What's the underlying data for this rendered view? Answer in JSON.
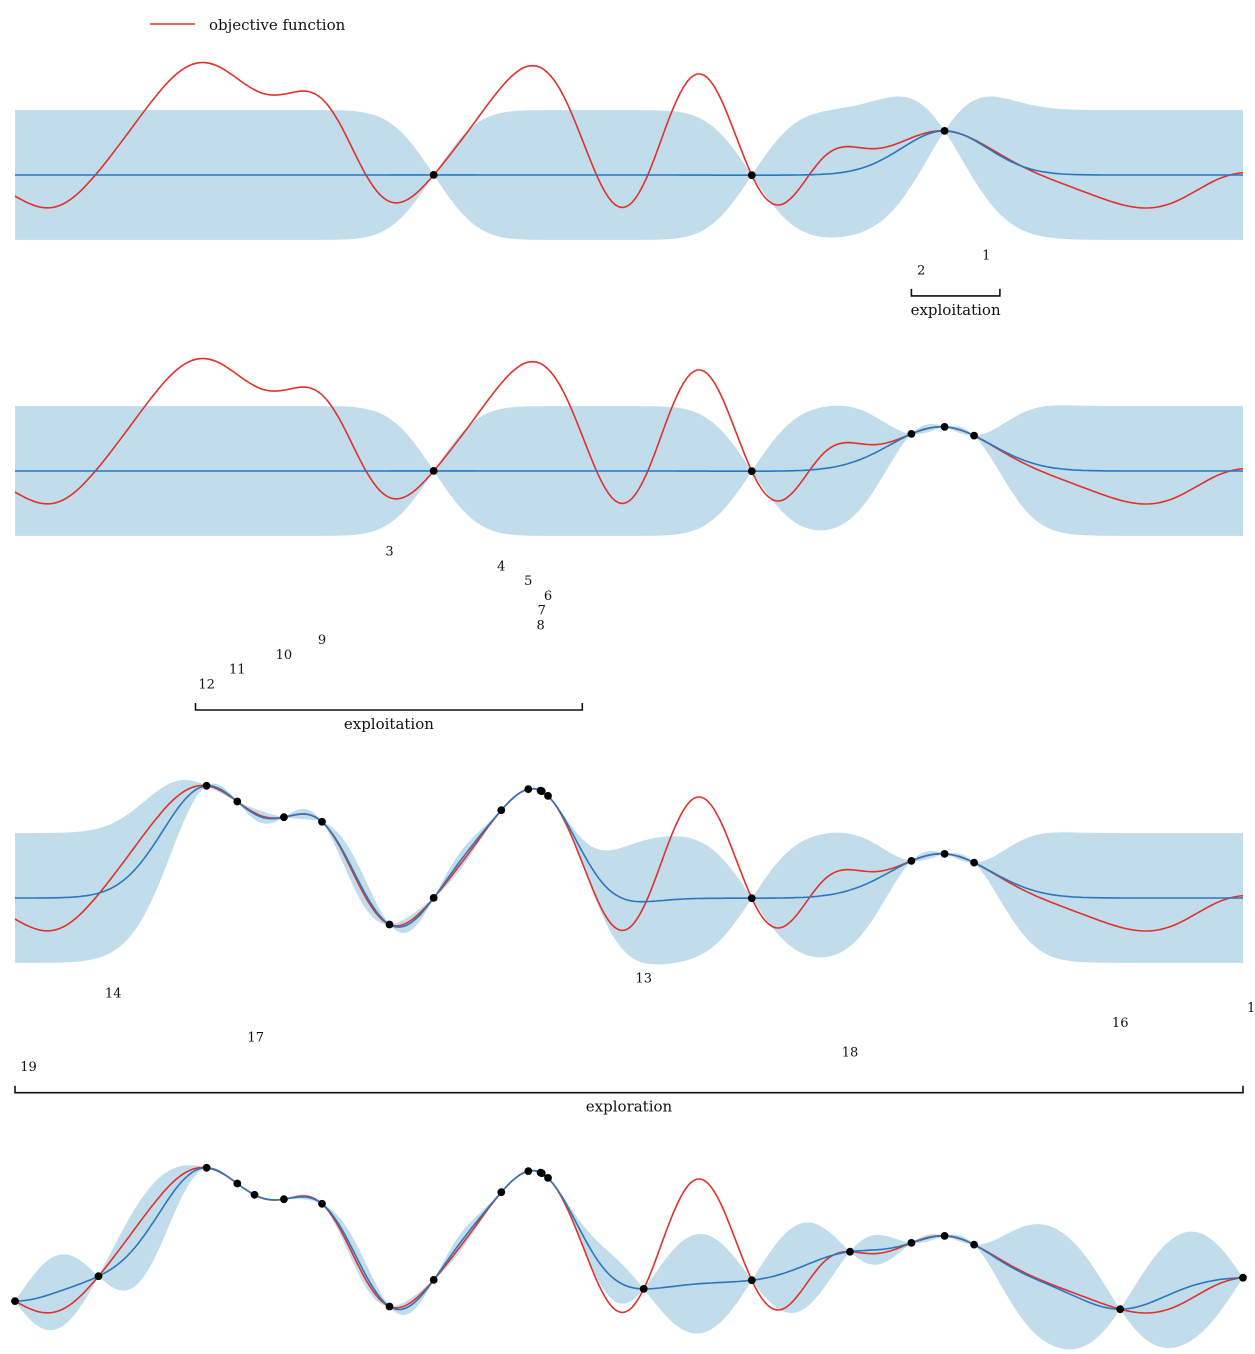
{
  "legend": {
    "label": "objective function",
    "color": "#e0312b"
  },
  "colors": {
    "objective": "#e0312b",
    "mean": "#2b77bd",
    "band": "#c1dcea",
    "point": "#000000"
  },
  "chart_data": {
    "type": "line",
    "title": "",
    "xlabel": "",
    "ylabel": "",
    "panels": [
      {
        "observed_x": [
          0.341,
          0.6,
          0.757
        ],
        "labels": [
          {
            "text": "1",
            "x": 0.791,
            "y": -1.35
          },
          {
            "text": "2",
            "x": 0.738,
            "y": -1.6
          }
        ],
        "bracket": {
          "label": "exploitation",
          "x0": 0.73,
          "x1": 0.802,
          "y": -2.05
        }
      },
      {
        "observed_x": [
          0.341,
          0.6,
          0.73,
          0.757,
          0.781
        ],
        "labels": [
          {
            "text": "3",
            "x": 0.305,
            "y": -1.35
          },
          {
            "text": "4",
            "x": 0.396,
            "y": -1.6
          },
          {
            "text": "5",
            "x": 0.418,
            "y": -1.85
          },
          {
            "text": "6",
            "x": 0.434,
            "y": -2.1
          },
          {
            "text": "7",
            "x": 0.429,
            "y": -2.35
          },
          {
            "text": "8",
            "x": 0.428,
            "y": -2.6
          },
          {
            "text": "9",
            "x": 0.25,
            "y": -2.85
          },
          {
            "text": "10",
            "x": 0.219,
            "y": -3.1
          },
          {
            "text": "11",
            "x": 0.181,
            "y": -3.35
          },
          {
            "text": "12",
            "x": 0.156,
            "y": -3.6
          }
        ],
        "bracket": {
          "label": "exploitation",
          "x0": 0.147,
          "x1": 0.462,
          "y": -4.05
        }
      },
      {
        "observed_x": [
          0.156,
          0.181,
          0.219,
          0.25,
          0.305,
          0.341,
          0.396,
          0.418,
          0.428,
          0.429,
          0.434,
          0.6,
          0.73,
          0.757,
          0.781
        ],
        "labels": [
          {
            "text": "13",
            "x": 0.512,
            "y": -1.35
          },
          {
            "text": "14",
            "x": 0.08,
            "y": -1.6
          },
          {
            "text": "15",
            "x": 1.01,
            "y": -1.85
          },
          {
            "text": "16",
            "x": 0.9,
            "y": -2.1
          },
          {
            "text": "17",
            "x": 0.196,
            "y": -2.35
          },
          {
            "text": "18",
            "x": 0.68,
            "y": -2.6
          },
          {
            "text": "19",
            "x": 0.011,
            "y": -2.85
          }
        ],
        "bracket": {
          "label": "exploration",
          "x0": 0.0,
          "x1": 1.0,
          "y": -3.3
        }
      },
      {
        "observed_x": [
          0.0,
          0.068,
          0.156,
          0.181,
          0.195,
          0.219,
          0.25,
          0.305,
          0.341,
          0.396,
          0.418,
          0.428,
          0.429,
          0.434,
          0.512,
          0.6,
          0.68,
          0.73,
          0.757,
          0.781,
          0.9,
          1.0
        ],
        "labels": [],
        "bracket": null
      }
    ]
  }
}
